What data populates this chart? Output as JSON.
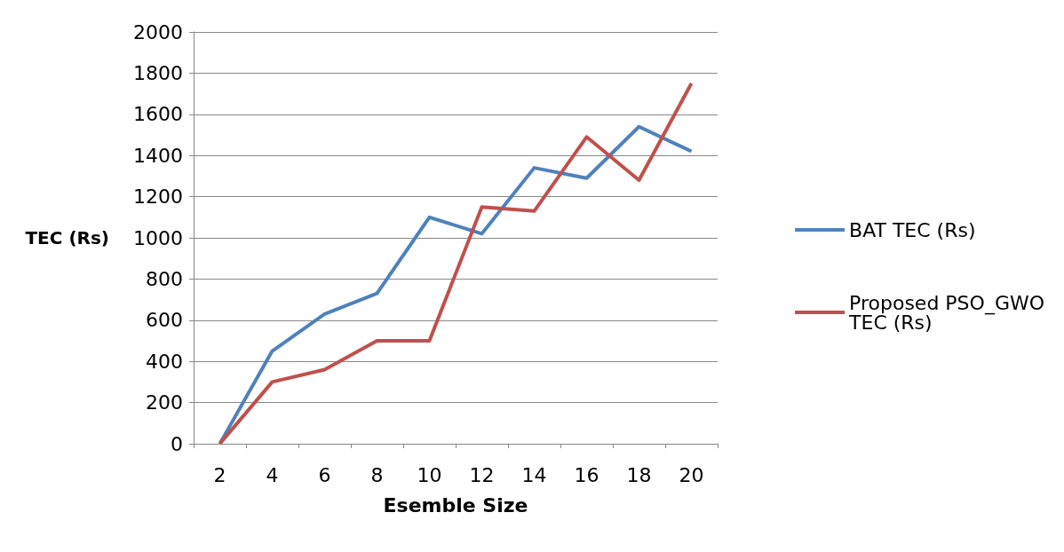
{
  "chart_data": {
    "type": "line",
    "xlabel": "Esemble Size",
    "ylabel": "TEC (Rs)",
    "categories": [
      "2",
      "4",
      "6",
      "8",
      "10",
      "12",
      "14",
      "16",
      "18",
      "20"
    ],
    "series": [
      {
        "name": "BAT TEC (Rs)",
        "color": "#4f81bd",
        "values": [
          0,
          450,
          630,
          730,
          1100,
          1020,
          1340,
          1290,
          1540,
          1420
        ]
      },
      {
        "name": "Proposed PSO_GWO TEC (Rs)",
        "color": "#c0504d",
        "values": [
          0,
          300,
          360,
          500,
          500,
          1150,
          1130,
          1490,
          1280,
          1750
        ]
      }
    ],
    "ylim": [
      0,
      2000
    ],
    "yticks": [
      0,
      200,
      400,
      600,
      800,
      1000,
      1200,
      1400,
      1600,
      1800,
      2000
    ],
    "grid": "y",
    "legend": "right",
    "marker": "none",
    "line_style": "solid"
  }
}
